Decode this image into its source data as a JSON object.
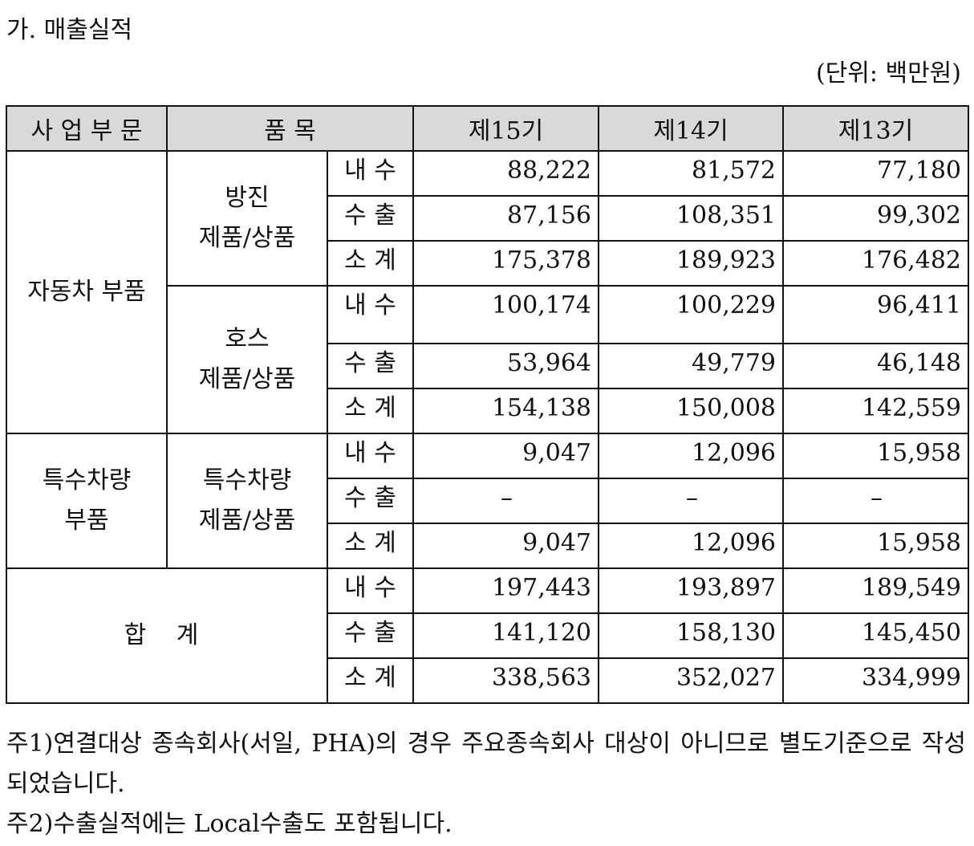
{
  "heading": "가. 매출실적",
  "unit_note": "(단위: 백만원)",
  "table": {
    "headers": {
      "segment": "사 업 부 문",
      "item": "품 목",
      "periods": [
        "제15기",
        "제14기",
        "제13기"
      ]
    },
    "groups": {
      "auto": {
        "segment": "자동차 부품",
        "products": [
          {
            "name_lines": [
              "방진",
              "제품/상품"
            ],
            "rows": [
              {
                "type": "내 수",
                "values": [
                  "88,222",
                  "81,572",
                  "77,180"
                ]
              },
              {
                "type": "수 출",
                "values": [
                  "87,156",
                  "108,351",
                  "99,302"
                ]
              },
              {
                "type": "소 계",
                "values": [
                  "175,378",
                  "189,923",
                  "176,482"
                ]
              }
            ]
          },
          {
            "name_lines": [
              "호스",
              "제품/상품"
            ],
            "rows": [
              {
                "type": "내 수",
                "values": [
                  "100,174",
                  "100,229",
                  "96,411"
                ]
              },
              {
                "type": "수 출",
                "values": [
                  "53,964",
                  "49,779",
                  "46,148"
                ]
              },
              {
                "type": "소 계",
                "values": [
                  "154,138",
                  "150,008",
                  "142,559"
                ]
              }
            ]
          }
        ]
      },
      "special": {
        "segment_lines": [
          "특수차량",
          "부품"
        ],
        "product_lines": [
          "특수차량",
          "제품/상품"
        ],
        "rows": [
          {
            "type": "내 수",
            "values": [
              "9,047",
              "12,096",
              "15,958"
            ]
          },
          {
            "type": "수 출",
            "values": [
              "–",
              "–",
              "–"
            ]
          },
          {
            "type": "소 계",
            "values": [
              "9,047",
              "12,096",
              "15,958"
            ]
          }
        ]
      },
      "total": {
        "label": "합 계",
        "rows": [
          {
            "type": "내 수",
            "values": [
              "197,443",
              "193,897",
              "189,549"
            ]
          },
          {
            "type": "수 출",
            "values": [
              "141,120",
              "158,130",
              "145,450"
            ]
          },
          {
            "type": "소 계",
            "values": [
              "338,563",
              "352,027",
              "334,999"
            ]
          }
        ]
      }
    }
  },
  "notes": [
    "주1)연결대상 종속회사(서일, PHA)의 경우 주요종속회사 대상이 아니므로 별도기준으로 작성되었습니다.",
    "주2)수출실적에는 Local수출도 포함됩니다."
  ]
}
